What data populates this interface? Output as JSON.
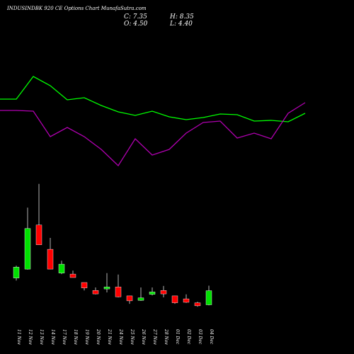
{
  "chart_data": {
    "type": "candlestick",
    "title": "INDUSINDBK 920 CE Options Chart MunafaSutra.com",
    "stats": [
      "C: 7.35",
      "H: 8.35",
      "O: 4.50",
      "L: 4.40"
    ],
    "categories": [
      "11 Nov",
      "12 Nov",
      "13 Nov",
      "14 Nov",
      "17 Nov",
      "18 Nov",
      "19 Nov",
      "20 Nov",
      "21 Nov",
      "24 Nov",
      "25 Nov",
      "26 Nov",
      "27 Nov",
      "28 Nov",
      "01 Dec",
      "02 Dec",
      "03 Dec",
      "04 Dec"
    ],
    "open": [
      9.9,
      11.7,
      20.6,
      15.7,
      10.9,
      10.7,
      9.0,
      7.4,
      7.7,
      8.1,
      6.3,
      5.4,
      6.6,
      7.4,
      6.3,
      5.7,
      4.9,
      4.5
    ],
    "high": [
      12.4,
      24.1,
      28.9,
      18.0,
      13.4,
      11.4,
      9.0,
      8.0,
      10.9,
      10.6,
      6.3,
      8.0,
      8.0,
      8.3,
      6.3,
      6.6,
      5.1,
      8.35
    ],
    "low": [
      9.4,
      11.6,
      16.6,
      11.7,
      10.7,
      10.0,
      7.4,
      6.6,
      7.0,
      6.0,
      4.7,
      5.3,
      6.4,
      6.0,
      4.7,
      4.9,
      4.1,
      4.4
    ],
    "close": [
      12.1,
      19.9,
      16.6,
      11.7,
      12.7,
      10.0,
      7.9,
      6.7,
      8.1,
      6.1,
      5.3,
      5.9,
      7.1,
      6.7,
      4.9,
      5.0,
      4.3,
      7.35
    ],
    "up_color": "#00e000",
    "down_color": "#ff0000",
    "ylim": [
      0,
      30
    ],
    "series": [
      {
        "color": "#00ff00",
        "axis": "y2",
        "values": [
          110,
          142,
          129,
          109,
          112,
          101,
          92,
          87,
          93,
          85,
          81,
          84,
          89,
          88,
          79,
          80,
          78,
          90
        ]
      },
      {
        "color": "#b000b0",
        "axis": "y2",
        "values": [
          94,
          93,
          57,
          70,
          57,
          39,
          16,
          54,
          31,
          39,
          62,
          77,
          79,
          55,
          62,
          54,
          90,
          105
        ]
      }
    ],
    "y2lim": [
      0,
      150
    ]
  }
}
